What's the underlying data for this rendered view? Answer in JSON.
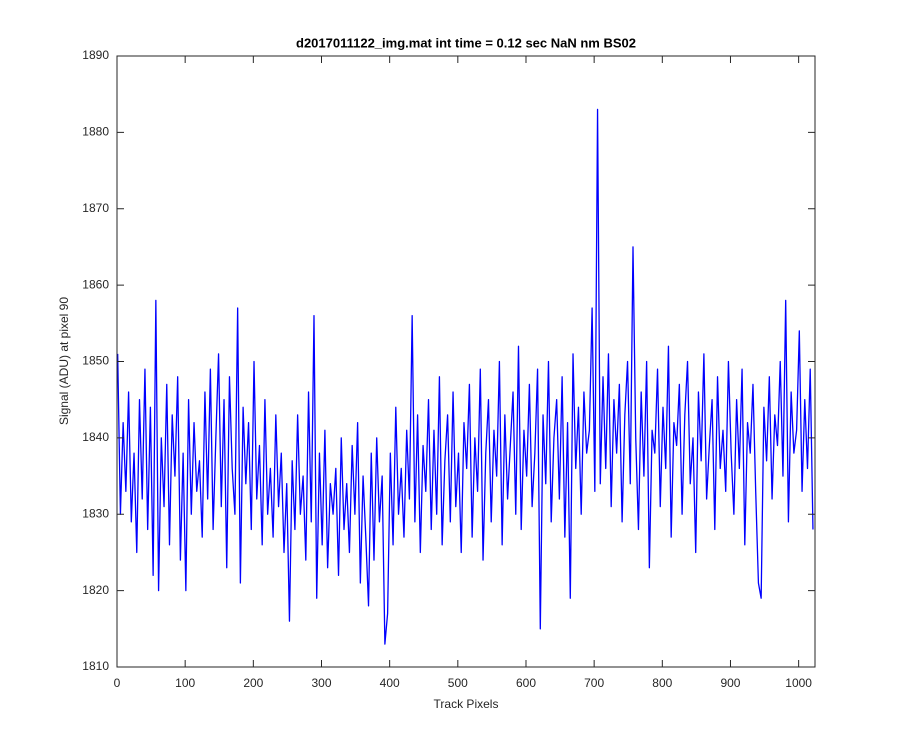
{
  "chart_data": {
    "type": "line",
    "title": "d2017011122_img.mat int time = 0.12 sec  NaN nm BS02",
    "x_label": "Track Pixels",
    "y_label": "Signal (ADU) at pixel 90",
    "color": "#0000ff",
    "xlim": [
      0,
      1024
    ],
    "ylim": [
      1810,
      1890
    ],
    "xticks": [
      0,
      100,
      200,
      300,
      400,
      500,
      600,
      700,
      800,
      900,
      1000
    ],
    "yticks": [
      1810,
      1820,
      1830,
      1840,
      1850,
      1860,
      1870,
      1880,
      1890
    ],
    "grid": false,
    "x": [
      1,
      5,
      9,
      13,
      17,
      21,
      25,
      29,
      33,
      37,
      41,
      45,
      49,
      53,
      57,
      61,
      65,
      69,
      73,
      77,
      81,
      85,
      89,
      93,
      97,
      101,
      105,
      109,
      113,
      117,
      121,
      125,
      129,
      133,
      137,
      141,
      145,
      149,
      153,
      157,
      161,
      165,
      169,
      173,
      177,
      181,
      185,
      189,
      193,
      197,
      201,
      205,
      209,
      213,
      217,
      221,
      225,
      229,
      233,
      237,
      241,
      245,
      249,
      253,
      257,
      261,
      265,
      269,
      273,
      277,
      281,
      285,
      289,
      293,
      297,
      301,
      305,
      309,
      313,
      317,
      321,
      325,
      329,
      333,
      337,
      341,
      345,
      349,
      353,
      357,
      361,
      365,
      369,
      373,
      377,
      381,
      385,
      389,
      393,
      397,
      401,
      405,
      409,
      413,
      417,
      421,
      425,
      429,
      433,
      437,
      441,
      445,
      449,
      453,
      457,
      461,
      465,
      469,
      473,
      477,
      481,
      485,
      489,
      493,
      497,
      501,
      505,
      509,
      513,
      517,
      521,
      525,
      529,
      533,
      537,
      541,
      545,
      549,
      553,
      557,
      561,
      565,
      569,
      573,
      577,
      581,
      585,
      589,
      593,
      597,
      601,
      605,
      609,
      613,
      617,
      621,
      625,
      629,
      633,
      637,
      641,
      645,
      649,
      653,
      657,
      661,
      665,
      669,
      673,
      677,
      681,
      685,
      689,
      693,
      697,
      701,
      705,
      709,
      713,
      717,
      721,
      725,
      729,
      733,
      737,
      741,
      745,
      749,
      753,
      757,
      761,
      765,
      769,
      773,
      777,
      781,
      785,
      789,
      793,
      797,
      801,
      805,
      809,
      813,
      817,
      821,
      825,
      829,
      833,
      837,
      841,
      845,
      849,
      853,
      857,
      861,
      865,
      869,
      873,
      877,
      881,
      885,
      889,
      893,
      897,
      901,
      905,
      909,
      913,
      917,
      921,
      925,
      929,
      933,
      937,
      941,
      945,
      949,
      953,
      957,
      961,
      965,
      969,
      973,
      977,
      981,
      985,
      989,
      993,
      997,
      1001,
      1005,
      1009,
      1013,
      1017,
      1021
    ],
    "values": [
      1851,
      1830,
      1842,
      1833,
      1846,
      1829,
      1838,
      1825,
      1845,
      1832,
      1849,
      1828,
      1844,
      1822,
      1858,
      1820,
      1840,
      1831,
      1847,
      1826,
      1843,
      1835,
      1848,
      1824,
      1838,
      1820,
      1845,
      1830,
      1842,
      1833,
      1837,
      1827,
      1846,
      1832,
      1849,
      1828,
      1840,
      1851,
      1831,
      1845,
      1823,
      1848,
      1836,
      1830,
      1857,
      1821,
      1844,
      1834,
      1842,
      1828,
      1850,
      1832,
      1839,
      1826,
      1845,
      1830,
      1836,
      1827,
      1843,
      1831,
      1838,
      1825,
      1834,
      1816,
      1837,
      1828,
      1843,
      1830,
      1835,
      1824,
      1846,
      1829,
      1856,
      1819,
      1838,
      1826,
      1841,
      1823,
      1834,
      1830,
      1836,
      1822,
      1840,
      1828,
      1834,
      1825,
      1839,
      1830,
      1842,
      1821,
      1835,
      1827,
      1818,
      1838,
      1824,
      1840,
      1829,
      1835,
      1813,
      1817,
      1838,
      1826,
      1844,
      1830,
      1836,
      1827,
      1841,
      1832,
      1856,
      1829,
      1843,
      1825,
      1839,
      1833,
      1845,
      1828,
      1841,
      1830,
      1848,
      1826,
      1837,
      1843,
      1829,
      1846,
      1831,
      1838,
      1825,
      1842,
      1836,
      1847,
      1827,
      1840,
      1833,
      1849,
      1824,
      1838,
      1845,
      1829,
      1841,
      1835,
      1850,
      1826,
      1843,
      1832,
      1839,
      1846,
      1830,
      1852,
      1828,
      1841,
      1835,
      1847,
      1831,
      1838,
      1849,
      1815,
      1843,
      1834,
      1850,
      1829,
      1840,
      1845,
      1832,
      1848,
      1827,
      1842,
      1819,
      1851,
      1836,
      1844,
      1830,
      1846,
      1838,
      1841,
      1857,
      1833,
      1883,
      1834,
      1848,
      1836,
      1851,
      1831,
      1845,
      1838,
      1847,
      1829,
      1843,
      1850,
      1834,
      1865,
      1840,
      1828,
      1846,
      1835,
      1850,
      1823,
      1841,
      1838,
      1849,
      1831,
      1844,
      1836,
      1852,
      1827,
      1842,
      1839,
      1847,
      1830,
      1843,
      1850,
      1834,
      1840,
      1825,
      1846,
      1837,
      1851,
      1832,
      1839,
      1845,
      1828,
      1848,
      1836,
      1841,
      1833,
      1850,
      1838,
      1830,
      1845,
      1836,
      1849,
      1826,
      1842,
      1838,
      1847,
      1833,
      1821,
      1819,
      1844,
      1837,
      1848,
      1832,
      1843,
      1839,
      1850,
      1835,
      1858,
      1829,
      1846,
      1838,
      1841,
      1854,
      1833,
      1845,
      1836,
      1849,
      1828
    ]
  }
}
